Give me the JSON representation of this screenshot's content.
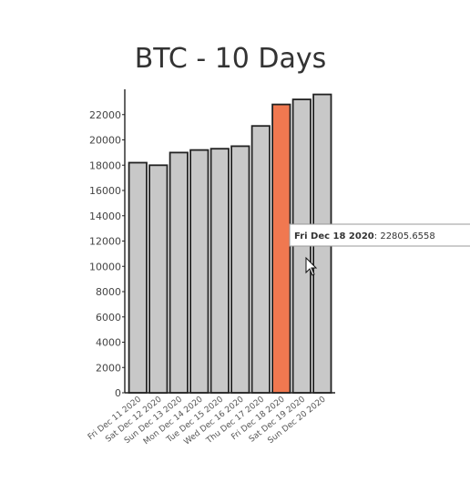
{
  "chart_data": {
    "type": "bar",
    "title": "BTC - 10 Days",
    "categories": [
      "Fri Dec 11 2020",
      "Sat Dec 12 2020",
      "Sun Dec 13 2020",
      "Mon Dec 14 2020",
      "Tue Dec 15 2020",
      "Wed Dec 16 2020",
      "Thu Dec 17 2020",
      "Fri Dec 18 2020",
      "Sat Dec 19 2020",
      "Sun Dec 20 2020"
    ],
    "values": [
      18200,
      18000,
      19000,
      19200,
      19300,
      19500,
      21100,
      22805.6558,
      23200,
      23600
    ],
    "ylim": [
      0,
      24000
    ],
    "yticks": [
      "0",
      "2000",
      "4000",
      "6000",
      "8000",
      "10000",
      "12000",
      "14000",
      "16000",
      "18000",
      "20000",
      "22000"
    ],
    "highlight_index": 7,
    "tooltip": {
      "date": "Fri Dec 18 2020",
      "value": "22805.6558"
    },
    "colors": {
      "bar": "#c8c8c8",
      "bar_highlight": "#f07850",
      "outline": "#222222"
    }
  }
}
